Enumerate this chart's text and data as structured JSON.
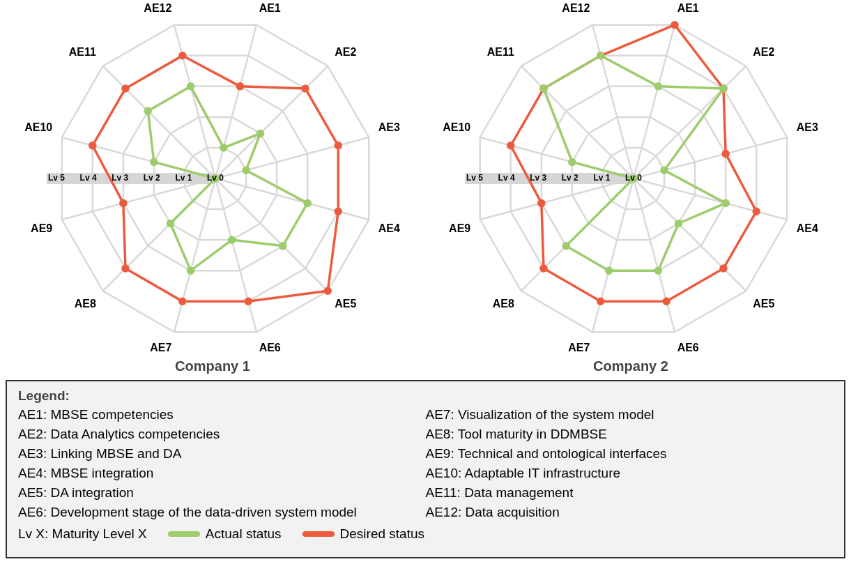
{
  "chart_data": [
    {
      "type": "radar",
      "title": "Company 1",
      "categories": [
        "AE1",
        "AE2",
        "AE3",
        "AE4",
        "AE5",
        "AE6",
        "AE7",
        "AE8",
        "AE9",
        "AE10",
        "AE11",
        "AE12"
      ],
      "series": [
        {
          "name": "Actual status",
          "color": "#9dcc6c",
          "values": [
            1,
            2,
            1,
            3,
            3,
            2,
            3,
            2,
            0,
            2,
            3,
            3
          ]
        },
        {
          "name": "Desired status",
          "color": "#ec5b3e",
          "values": [
            3,
            4,
            4,
            4,
            5,
            4,
            4,
            4,
            3,
            4,
            4,
            4
          ]
        }
      ],
      "ylim": [
        0,
        5
      ],
      "yticks": [
        {
          "value": 0,
          "label": "Lv 0"
        },
        {
          "value": 1,
          "label": "Lv 1"
        },
        {
          "value": 2,
          "label": "Lv 2"
        },
        {
          "value": 3,
          "label": "Lv 3"
        },
        {
          "value": 4,
          "label": "Lv 4"
        },
        {
          "value": 5,
          "label": "Lv 5"
        }
      ],
      "grid": true,
      "marker": "circle",
      "line_style": "solid",
      "legend": "bottom",
      "legend_title": "Legend:",
      "annotations": [
        "AE1: MBSE competencies",
        "AE2: Data Analytics competencies",
        "AE3: Linking MBSE and DA",
        "AE4: MBSE integration",
        "AE5: DA integration",
        "AE6: Development stage of the data-driven system model",
        "AE7: Visualization of the system model",
        "AE8: Tool maturity in DDMBSE",
        "AE9: Technical and ontological interfaces",
        "AE10: Adaptable IT infrastructure",
        "AE11: Data management",
        "AE12: Data acquisition",
        "Lv X: Maturity Level X"
      ]
    },
    {
      "type": "radar",
      "title": "Company 2",
      "categories": [
        "AE1",
        "AE2",
        "AE3",
        "AE4",
        "AE5",
        "AE6",
        "AE7",
        "AE8",
        "AE9",
        "AE10",
        "AE11",
        "AE12"
      ],
      "series": [
        {
          "color": "#9dcc6c",
          "values": [
            3,
            4,
            1,
            3,
            2,
            3,
            3,
            3,
            0,
            2,
            4,
            4
          ]
        },
        {
          "color": "#ec5b3e",
          "values": [
            5,
            4,
            3,
            4,
            4,
            4,
            4,
            4,
            3,
            4,
            4,
            4
          ]
        }
      ],
      "ylim": [
        0,
        5
      ],
      "yticks": [
        {
          "value": 0,
          "label": "Lv 0"
        },
        {
          "value": 1,
          "label": "Lv 1"
        },
        {
          "value": 2,
          "label": "Lv 2"
        },
        {
          "value": 3,
          "label": "Lv 3"
        },
        {
          "value": 4,
          "label": "Lv 4"
        },
        {
          "value": 5,
          "label": "Lv 5"
        }
      ],
      "grid": true,
      "marker": "circle",
      "line_style": "solid"
    }
  ]
}
